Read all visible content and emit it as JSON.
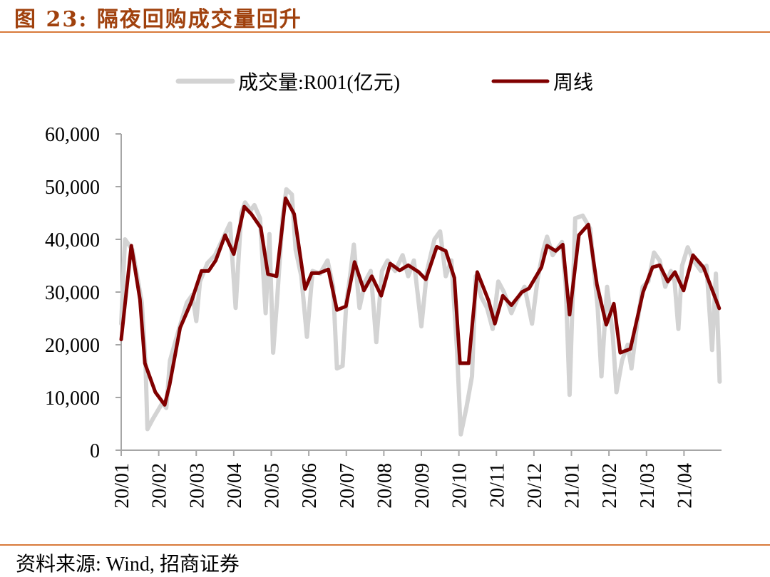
{
  "header": {
    "title": "图 23:  隔夜回购成交量回升"
  },
  "footer": {
    "source": "资料来源:  Wind, 招商证券"
  },
  "colors": {
    "accent": "#d8793a",
    "title": "#a0410d",
    "volume": "#d3d3d3",
    "weekly": "#800000",
    "axis": "#a6a6a6"
  },
  "chart_data": {
    "type": "line",
    "title": "隔夜回购成交量回升",
    "xlabel": "",
    "ylabel": "",
    "ylim": [
      0,
      60000
    ],
    "xlim": [
      0,
      16
    ],
    "yticks": [
      0,
      10000,
      20000,
      30000,
      40000,
      50000,
      60000
    ],
    "ytick_labels": [
      "0",
      "10,000",
      "20,000",
      "30,000",
      "40,000",
      "50,000",
      "60,000"
    ],
    "xtick_labels": [
      "20/01",
      "20/02",
      "20/03",
      "20/04",
      "20/05",
      "20/06",
      "20/07",
      "20/08",
      "20/09",
      "20/10",
      "20/11",
      "20/12",
      "21/01",
      "21/02",
      "21/03",
      "21/04"
    ],
    "legend_position": "top-center",
    "grid": false,
    "series": [
      {
        "name": "成交量:R001(亿元)",
        "color": "#d3d3d3",
        "x": [
          0,
          0.1,
          0.3,
          0.55,
          0.65,
          0.7,
          0.85,
          1.1,
          1.2,
          1.3,
          1.5,
          1.75,
          1.9,
          2.0,
          2.1,
          2.3,
          2.5,
          2.7,
          2.9,
          3.05,
          3.2,
          3.3,
          3.45,
          3.55,
          3.7,
          3.85,
          3.95,
          4.05,
          4.15,
          4.3,
          4.4,
          4.55,
          4.65,
          4.8,
          4.95,
          5.1,
          5.3,
          5.5,
          5.65,
          5.75,
          5.9,
          6.0,
          6.1,
          6.2,
          6.35,
          6.5,
          6.65,
          6.8,
          6.95,
          7.1,
          7.3,
          7.5,
          7.65,
          7.8,
          8.0,
          8.15,
          8.35,
          8.5,
          8.65,
          8.8,
          8.95,
          9.05,
          9.2,
          9.35,
          9.45,
          9.6,
          9.75,
          9.9,
          10.05,
          10.2,
          10.4,
          10.55,
          10.75,
          10.95,
          11.1,
          11.25,
          11.35,
          11.5,
          11.6,
          11.75,
          11.85,
          11.95,
          12.1,
          12.3,
          12.5,
          12.7,
          12.8,
          12.95,
          13.1,
          13.2,
          13.35,
          13.5,
          13.6,
          13.75,
          13.9,
          14.05,
          14.2,
          14.35,
          14.5,
          14.65,
          14.75,
          14.85,
          14.95,
          15.1,
          15.25,
          15.45,
          15.6,
          15.75,
          15.85,
          15.95
        ],
        "values": [
          24000,
          40000,
          38000,
          28000,
          16000,
          4000,
          6000,
          9000,
          8000,
          17000,
          22000,
          28000,
          29500,
          24500,
          32000,
          35500,
          37000,
          40000,
          43000,
          27000,
          45000,
          47000,
          45500,
          46500,
          44000,
          26000,
          41000,
          18500,
          28000,
          44000,
          49500,
          48500,
          38000,
          33000,
          21500,
          34000,
          33500,
          36000,
          31000,
          15500,
          16000,
          28000,
          33000,
          39000,
          27000,
          32000,
          34000,
          20500,
          34000,
          36000,
          34000,
          37000,
          33000,
          36000,
          23500,
          34000,
          40000,
          41500,
          33000,
          36000,
          19000,
          3000,
          8000,
          14000,
          33000,
          29000,
          27000,
          23000,
          32000,
          30000,
          26000,
          28500,
          31000,
          24000,
          32500,
          38000,
          40500,
          37000,
          38000,
          39500,
          31000,
          10500,
          44000,
          44500,
          42000,
          27000,
          14000,
          31000,
          22000,
          11000,
          17000,
          20000,
          15500,
          24000,
          31000,
          32000,
          37500,
          36000,
          31000,
          34000,
          32000,
          23000,
          35000,
          38500,
          36000,
          34000,
          35000,
          19000,
          33500,
          13000
        ]
      },
      {
        "name": "周线",
        "color": "#800000",
        "x": [
          0,
          0.27,
          0.5,
          0.63,
          0.91,
          1.16,
          1.29,
          1.57,
          1.86,
          2.14,
          2.33,
          2.52,
          2.77,
          3.0,
          3.28,
          3.47,
          3.72,
          3.91,
          4.14,
          4.38,
          4.61,
          4.9,
          5.08,
          5.27,
          5.52,
          5.75,
          5.99,
          6.22,
          6.47,
          6.68,
          6.93,
          7.17,
          7.42,
          7.65,
          7.93,
          8.12,
          8.41,
          8.65,
          8.88,
          9.03,
          9.26,
          9.49,
          9.79,
          9.96,
          10.17,
          10.4,
          10.68,
          10.87,
          11.2,
          11.35,
          11.58,
          11.77,
          11.95,
          12.2,
          12.45,
          12.68,
          12.93,
          13.13,
          13.3,
          13.57,
          13.91,
          14.16,
          14.35,
          14.57,
          14.76,
          14.99,
          15.24,
          15.52,
          15.94
        ],
        "values": [
          21000,
          38800,
          28600,
          16500,
          11000,
          8600,
          12400,
          23200,
          28000,
          34000,
          34000,
          36000,
          40800,
          37200,
          46200,
          44800,
          42200,
          33400,
          33000,
          47800,
          44800,
          30600,
          33600,
          33600,
          34300,
          26600,
          27300,
          35700,
          30300,
          33000,
          29300,
          35400,
          34100,
          35100,
          33800,
          32400,
          38600,
          37800,
          32700,
          16500,
          16500,
          33800,
          28400,
          24000,
          29300,
          27500,
          30000,
          30700,
          34700,
          38800,
          37800,
          39000,
          25700,
          40800,
          42800,
          31400,
          23800,
          27800,
          18500,
          19200,
          30000,
          34700,
          35100,
          32000,
          33800,
          30300,
          37000,
          34700,
          26900
        ]
      }
    ]
  }
}
